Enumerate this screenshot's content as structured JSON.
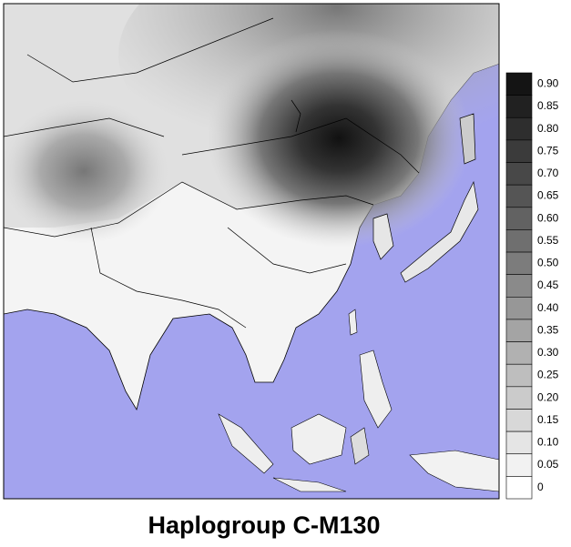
{
  "title": "Haplogroup C-M130",
  "legend": {
    "labels": [
      "0.90",
      "0.85",
      "0.80",
      "0.75",
      "0.70",
      "0.65",
      "0.60",
      "0.55",
      "0.50",
      "0.45",
      "0.40",
      "0.35",
      "0.30",
      "0.25",
      "0.20",
      "0.15",
      "0.10",
      "0.05",
      "0"
    ]
  }
}
